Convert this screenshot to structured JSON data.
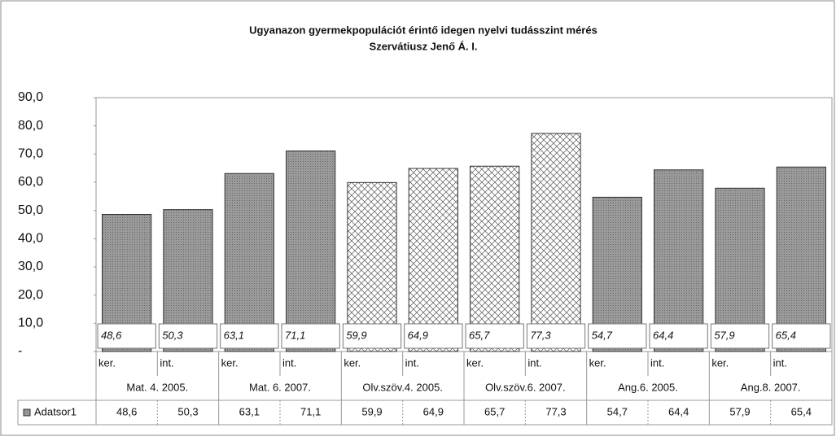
{
  "chart_data": {
    "type": "bar",
    "title": "Ugyanazon gyermekpopulációt érintő idegen nyelvi tudásszint mérés",
    "subtitle": "Szervátiusz Jenő Á. I.",
    "categories": [
      "ker.",
      "int.",
      "ker.",
      "int.",
      "ker.",
      "int.",
      "ker.",
      "int.",
      "ker.",
      "int.",
      "ker.",
      "int."
    ],
    "groups": [
      "Mat. 4. 2005.",
      "Mat. 6. 2007.",
      "Olv.szöv.4. 2005.",
      "Olv.szöv.6. 2007.",
      "Ang.6. 2005.",
      "Ang.8. 2007."
    ],
    "series": [
      {
        "name": "Adatsor1",
        "values": [
          48.6,
          50.3,
          63.1,
          71.1,
          59.9,
          64.9,
          65.7,
          77.3,
          54.7,
          64.4,
          57.9,
          65.4
        ],
        "value_labels": [
          "48,6",
          "50,3",
          "63,1",
          "71,1",
          "59,9",
          "64,9",
          "65,7",
          "77,3",
          "54,7",
          "64,4",
          "57,9",
          "65,4"
        ],
        "colors": [
          "#8a8a8a",
          "#8a8a8a",
          "#8a8a8a",
          "#8a8a8a",
          "#ffffff",
          "#ffffff",
          "#ffffff",
          "#ffffff",
          "#8a8a8a",
          "#8a8a8a",
          "#8a8a8a",
          "#8a8a8a"
        ]
      }
    ],
    "ylim": [
      0,
      90
    ],
    "yticks": [
      {
        "value": 0,
        "label": "-"
      },
      {
        "value": 10,
        "label": "10,0"
      },
      {
        "value": 20,
        "label": "20,0"
      },
      {
        "value": 30,
        "label": "30,0"
      },
      {
        "value": 40,
        "label": "40,0"
      },
      {
        "value": 50,
        "label": "50,0"
      },
      {
        "value": 60,
        "label": "60,0"
      },
      {
        "value": 70,
        "label": "70,0"
      },
      {
        "value": 80,
        "label": "80,0"
      },
      {
        "value": 90,
        "label": "90,0"
      }
    ]
  }
}
